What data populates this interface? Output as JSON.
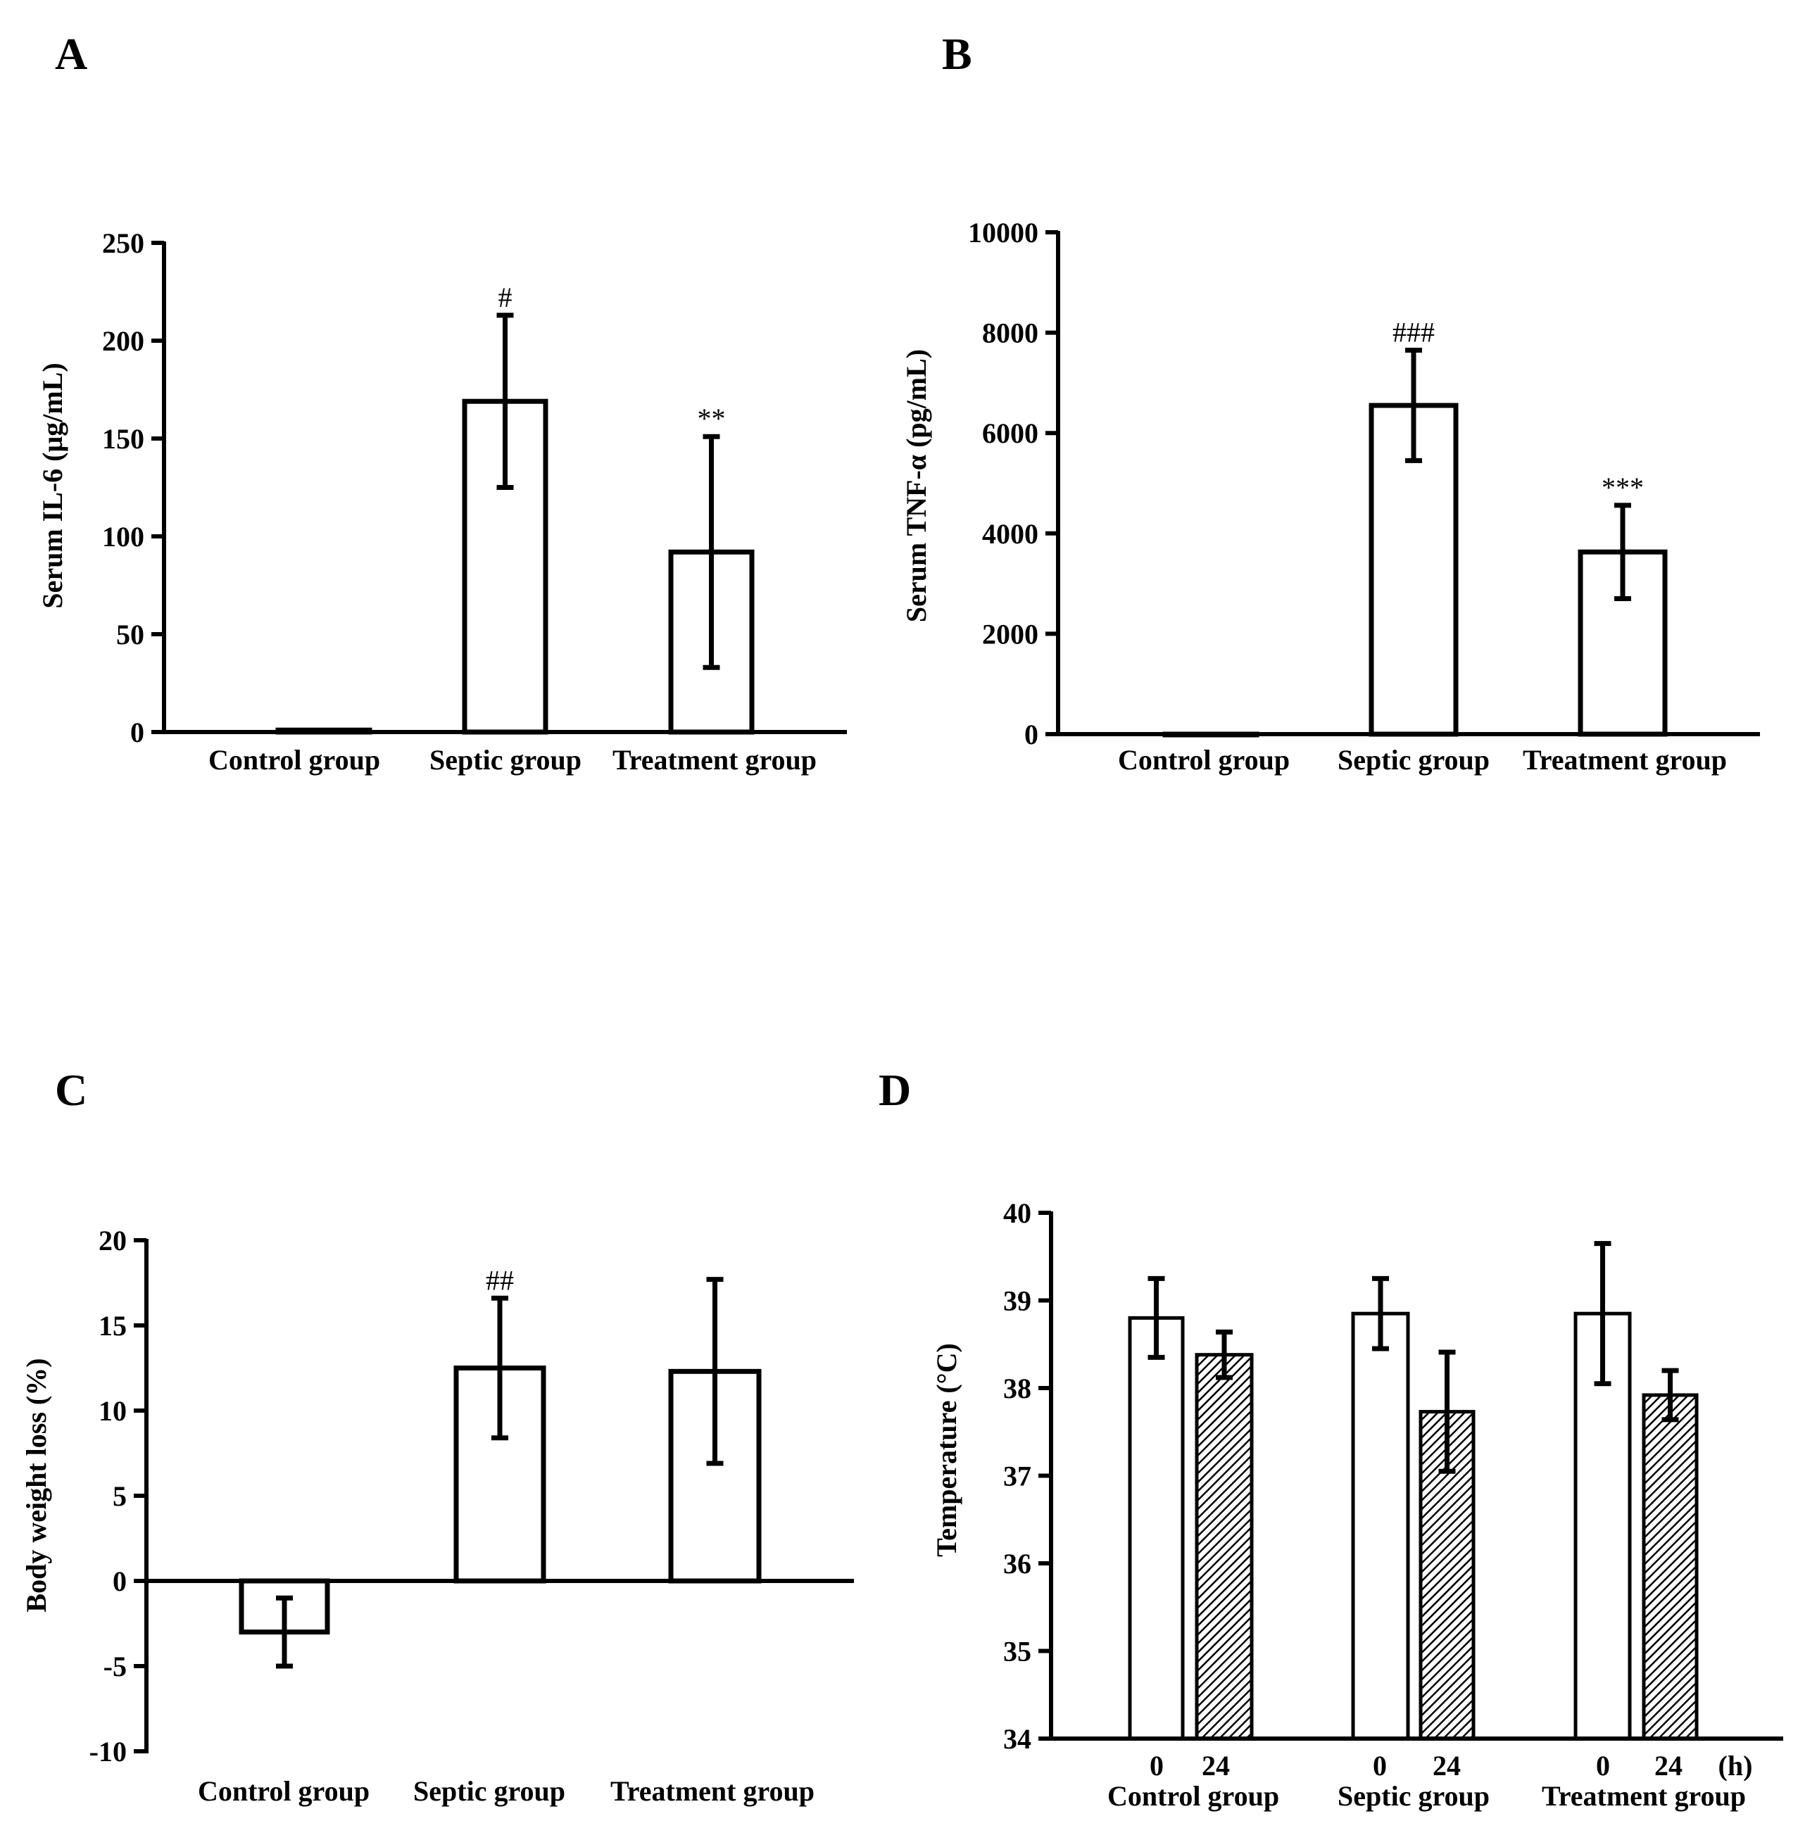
{
  "chart_data": [
    {
      "panel": "A",
      "type": "bar",
      "ylabel": "Serum IL-6 (μg/mL)",
      "ylim": [
        0,
        250
      ],
      "yticks": [
        0,
        50,
        100,
        150,
        200,
        250
      ],
      "categories": [
        "Control group",
        "Septic group",
        "Treatment group"
      ],
      "values": [
        1,
        169,
        92
      ],
      "errors": [
        0,
        44,
        59
      ],
      "annotations": [
        "",
        "#",
        "**"
      ]
    },
    {
      "panel": "B",
      "type": "bar",
      "ylabel": "Serum TNF-α (pg/mL)",
      "ylim": [
        0,
        10000
      ],
      "yticks": [
        0,
        2000,
        4000,
        6000,
        8000,
        10000
      ],
      "categories": [
        "Control group",
        "Septic group",
        "Treatment group"
      ],
      "values": [
        0,
        6550,
        3630
      ],
      "errors": [
        0,
        1100,
        930
      ],
      "annotations": [
        "",
        "###",
        "***"
      ]
    },
    {
      "panel": "C",
      "type": "bar",
      "ylabel": "Body weight loss (%)",
      "ylim": [
        -10,
        20
      ],
      "yticks": [
        -10,
        -5,
        0,
        5,
        10,
        15,
        20
      ],
      "categories": [
        "Control group",
        "Septic group",
        "Treatment group"
      ],
      "values": [
        -3,
        12.5,
        12.3
      ],
      "errors": [
        2,
        4.1,
        5.4
      ],
      "annotations": [
        "",
        "##",
        ""
      ]
    },
    {
      "panel": "D",
      "type": "bar",
      "ylabel": "Temperature (°C)",
      "ylim": [
        34,
        40
      ],
      "yticks": [
        34,
        35,
        36,
        37,
        38,
        39,
        40
      ],
      "categories": [
        "Control group",
        "Septic group",
        "Treatment group"
      ],
      "x_sublabels": [
        "0",
        "24"
      ],
      "x_unit": "(h)",
      "series": [
        {
          "name": "0",
          "values": [
            38.8,
            38.85,
            38.85
          ],
          "errors": [
            0.45,
            0.4,
            0.8
          ]
        },
        {
          "name": "24",
          "values": [
            38.38,
            37.73,
            37.92
          ],
          "errors": [
            0.26,
            0.68,
            0.28
          ]
        }
      ]
    }
  ]
}
